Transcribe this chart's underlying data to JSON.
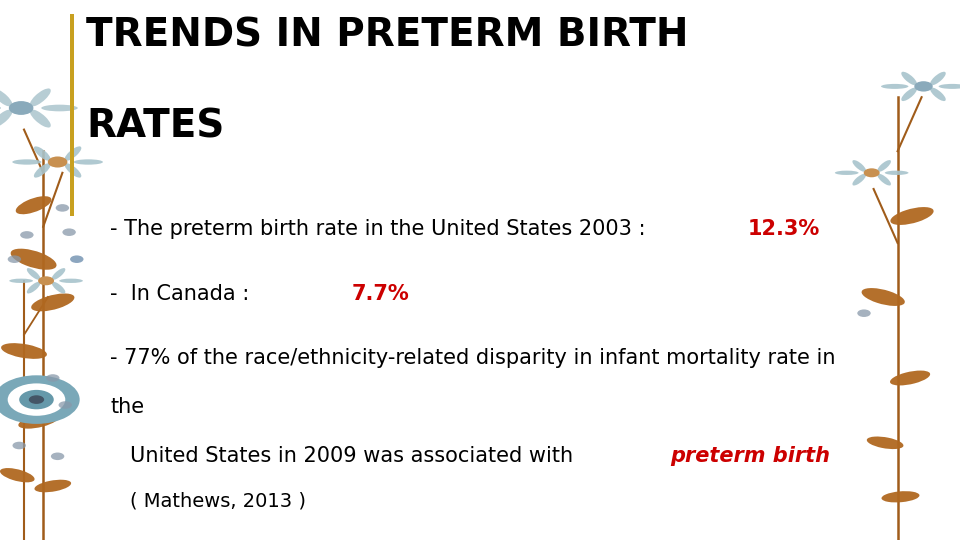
{
  "title_line1": "TRENDS IN PRETERM BIRTH",
  "title_line2": "RATES",
  "title_color": "#000000",
  "title_fontsize": 28,
  "accent_bar_color": "#C8A020",
  "bullet1_normal": "- The preterm birth rate in the United States 2003 : ",
  "bullet1_highlight": "12.3%",
  "bullet2_normal": "-  In Canada : ",
  "bullet2_highlight": "7.7%",
  "bullet3_line1": "- 77% of the race/ethnicity-related disparity in infant mortality rate in",
  "bullet3_line1b": "the",
  "bullet3_line2_normal": "United States in 2009 was associated with ",
  "bullet3_line2_highlight": "preterm birth",
  "citation": "( Mathews, 2013 )",
  "highlight_color": "#cc0000",
  "normal_color": "#000000",
  "background_color": "#ffffff",
  "body_fontsize": 15,
  "citation_fontsize": 14,
  "petal_color": "#a8c4cc",
  "center_color_1": "#8aabb5",
  "center_color_2": "#c8954a",
  "stem_color": "#a05c1a",
  "leaf_color": "#b06820",
  "dot_color_1": "#8899aa",
  "dot_color_2": "#6688aa"
}
